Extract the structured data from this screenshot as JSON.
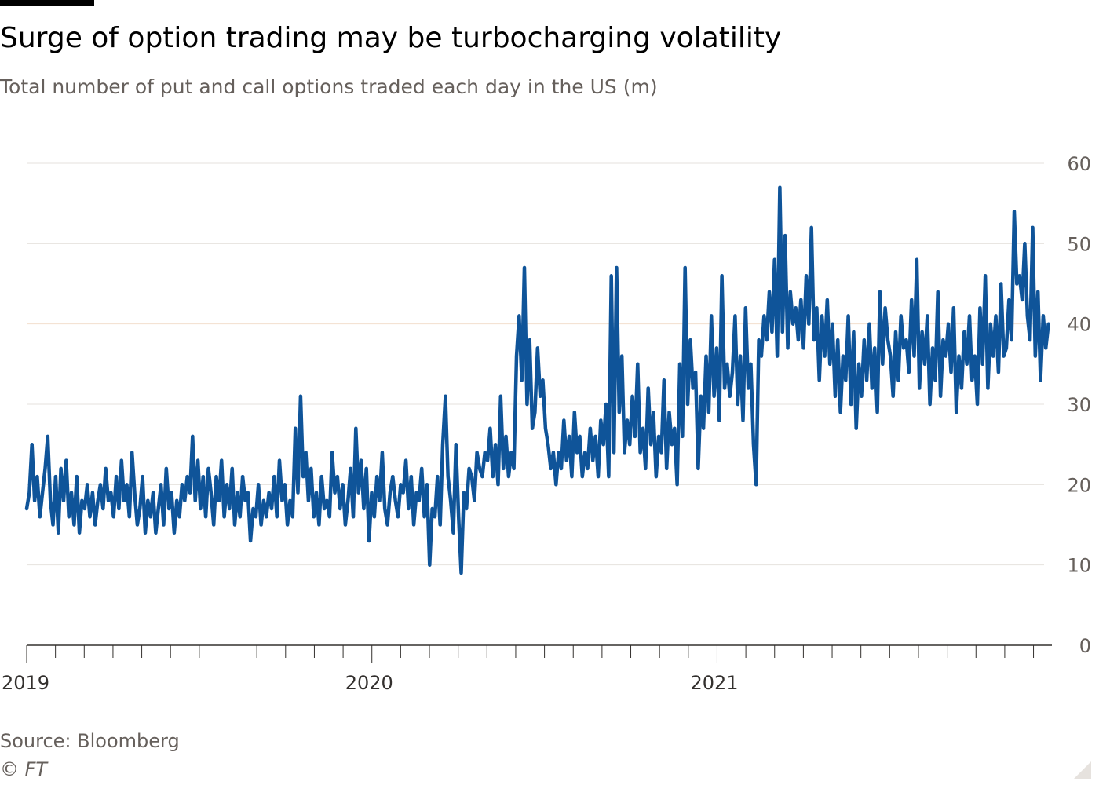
{
  "header": {
    "title": "Surge of option trading may be turbocharging volatility",
    "subtitle": "Total number of put and call options traded each day in the US (m)"
  },
  "footer": {
    "source": "Source: Bloomberg",
    "credit": "© FT"
  },
  "colors": {
    "line": "#0f5499",
    "grid": "#e6e2de",
    "grid_highlight": "#f2dfce",
    "axis": "#33302e",
    "tick_label": "#66605c"
  },
  "chart_data": {
    "type": "line",
    "title": "Surge of option trading may be turbocharging volatility",
    "subtitle": "Total number of put and call options traded each day in the US (m)",
    "xlabel": "",
    "ylabel": "",
    "ylim": [
      0,
      60
    ],
    "yticks": [
      0,
      10,
      20,
      30,
      40,
      50,
      60
    ],
    "xlim": [
      2019.0,
      2021.97
    ],
    "xticks": [
      {
        "value": 2019,
        "label": "2019"
      },
      {
        "value": 2020,
        "label": "2020"
      },
      {
        "value": 2021,
        "label": "2021"
      }
    ],
    "grid": true,
    "series": [
      {
        "name": "Options traded (m)",
        "x_start": 2019.0,
        "x_end": 2021.96,
        "values": [
          17,
          19,
          25,
          18,
          21,
          16,
          19,
          22,
          26,
          18,
          15,
          21,
          14,
          22,
          18,
          23,
          16,
          19,
          15,
          21,
          14,
          18,
          17,
          20,
          16,
          19,
          15,
          18,
          20,
          17,
          22,
          18,
          19,
          16,
          21,
          17,
          23,
          18,
          20,
          16,
          24,
          19,
          15,
          17,
          21,
          14,
          18,
          16,
          19,
          14,
          17,
          20,
          15,
          22,
          17,
          19,
          14,
          18,
          16,
          20,
          18,
          21,
          19,
          26,
          18,
          23,
          17,
          21,
          16,
          22,
          19,
          15,
          21,
          18,
          23,
          16,
          20,
          17,
          22,
          15,
          19,
          16,
          21,
          18,
          19,
          13,
          17,
          16,
          20,
          15,
          18,
          16,
          19,
          17,
          21,
          16,
          23,
          18,
          20,
          15,
          18,
          16,
          27,
          19,
          31,
          21,
          24,
          18,
          22,
          16,
          19,
          15,
          21,
          17,
          18,
          16,
          24,
          19,
          21,
          17,
          20,
          15,
          18,
          22,
          16,
          27,
          19,
          23,
          17,
          22,
          13,
          19,
          16,
          21,
          18,
          24,
          17,
          15,
          19,
          21,
          18,
          16,
          20,
          19,
          23,
          17,
          21,
          15,
          19,
          18,
          22,
          16,
          20,
          10,
          17,
          16,
          21,
          15,
          25,
          31,
          21,
          18,
          14,
          25,
          16,
          9,
          19,
          17,
          22,
          21,
          18,
          24,
          22,
          21,
          24,
          23,
          27,
          21,
          25,
          20,
          31,
          22,
          26,
          21,
          24,
          22,
          36,
          41,
          33,
          47,
          30,
          38,
          27,
          29,
          37,
          31,
          33,
          27,
          25,
          22,
          24,
          20,
          24,
          22,
          28,
          23,
          26,
          21,
          29,
          24,
          26,
          21,
          24,
          22,
          27,
          23,
          26,
          21,
          28,
          25,
          30,
          21,
          46,
          24,
          47,
          29,
          36,
          24,
          28,
          25,
          31,
          26,
          35,
          24,
          27,
          22,
          32,
          25,
          29,
          21,
          26,
          24,
          33,
          22,
          29,
          25,
          27,
          20,
          35,
          26,
          47,
          30,
          38,
          32,
          34,
          22,
          31,
          27,
          36,
          29,
          41,
          31,
          37,
          28,
          46,
          32,
          35,
          31,
          34,
          41,
          30,
          36,
          28,
          42,
          32,
          35,
          25,
          20,
          38,
          36,
          41,
          38,
          44,
          39,
          48,
          36,
          57,
          39,
          51,
          37,
          44,
          40,
          42,
          38,
          43,
          37,
          46,
          40,
          52,
          38,
          42,
          33,
          41,
          36,
          43,
          35,
          40,
          31,
          38,
          29,
          36,
          33,
          41,
          30,
          39,
          27,
          35,
          31,
          38,
          33,
          40,
          32,
          37,
          29,
          44,
          35,
          42,
          38,
          36,
          31,
          39,
          33,
          41,
          37,
          38,
          34,
          43,
          36,
          48,
          32,
          39,
          35,
          41,
          30,
          37,
          33,
          44,
          31,
          38,
          36,
          40,
          34,
          42,
          29,
          36,
          32,
          39,
          35,
          41,
          33,
          36,
          30,
          42,
          35,
          46,
          32,
          40,
          36,
          41,
          34,
          45,
          36,
          37,
          43,
          38,
          54,
          45,
          46,
          43,
          50,
          41,
          38,
          52,
          36,
          44,
          33,
          41,
          37,
          40
        ]
      }
    ]
  }
}
